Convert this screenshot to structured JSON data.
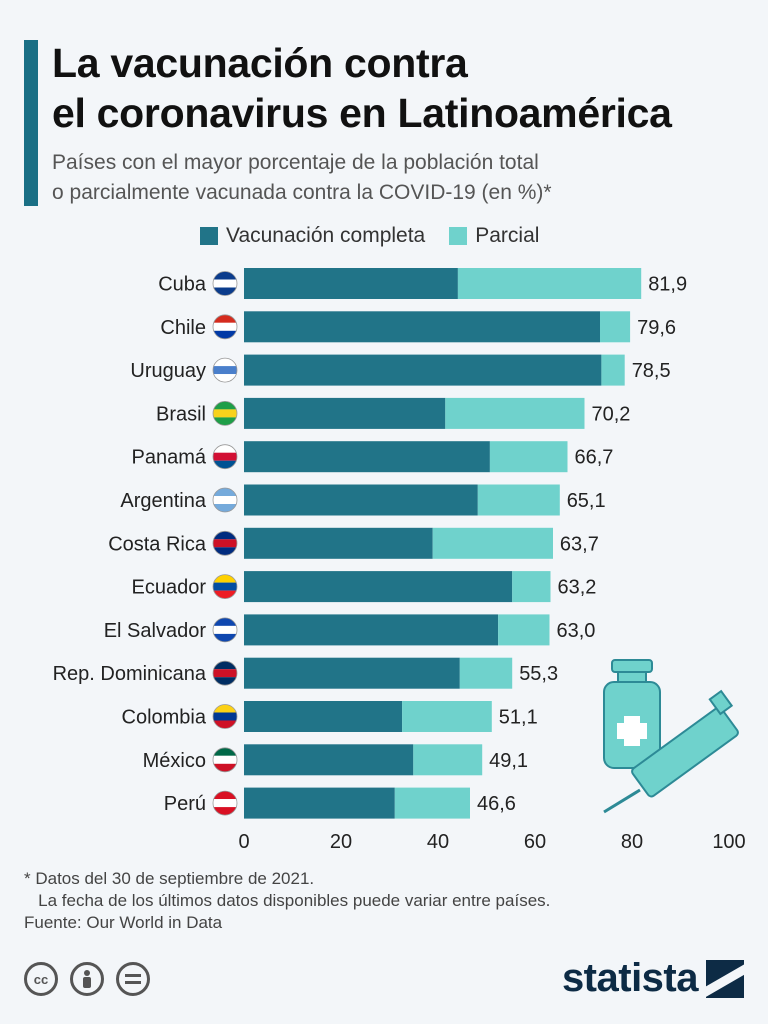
{
  "header": {
    "title_line1": "La vacunación contra",
    "title_line2": "el coronavirus en Latinoamérica",
    "subtitle_line1": "Países con el mayor porcentaje de la población total",
    "subtitle_line2": "o parcialmente vacunada contra la COVID-19 (en %)*"
  },
  "colors": {
    "complete": "#217488",
    "partial": "#6fd2cc",
    "accent": "#1a6f85",
    "brand": "#0d2b45"
  },
  "chart_data": {
    "type": "bar",
    "orientation": "horizontal",
    "stacked": true,
    "title": "",
    "xlabel": "",
    "ylabel": "",
    "categories": [
      "Cuba",
      "Chile",
      "Uruguay",
      "Brasil",
      "Panamá",
      "Argentina",
      "Costa Rica",
      "Ecuador",
      "El Salvador",
      "Rep. Dominicana",
      "Colombia",
      "México",
      "Perú"
    ],
    "series": [
      {
        "name": "Vacunación completa",
        "values": [
          44.1,
          73.4,
          73.7,
          41.5,
          50.7,
          48.2,
          38.9,
          55.3,
          52.4,
          44.5,
          32.6,
          34.9,
          31.1
        ]
      },
      {
        "name": "Parcial",
        "values": [
          37.8,
          6.2,
          4.8,
          28.7,
          16.0,
          16.9,
          24.8,
          7.9,
          10.6,
          10.8,
          18.5,
          14.2,
          15.5
        ]
      }
    ],
    "totals": [
      "81,9",
      "79,6",
      "78,5",
      "70,2",
      "66,7",
      "65,1",
      "63,7",
      "63,2",
      "63,0",
      "55,3",
      "51,1",
      "49,1",
      "46,6"
    ],
    "xlim": [
      0,
      100
    ],
    "xticks": [
      0,
      20,
      40,
      60,
      80,
      100
    ],
    "legend_position": "top",
    "grid": false
  },
  "footnote": {
    "line1": "* Datos del 30 de septiembre de 2021.",
    "line2": "   La fecha de los últimos datos disponibles puede variar entre países.",
    "source": "Fuente: Our World in Data"
  },
  "license_icons": [
    "cc-icon",
    "person-icon",
    "equals-icon"
  ],
  "brand": "statista"
}
